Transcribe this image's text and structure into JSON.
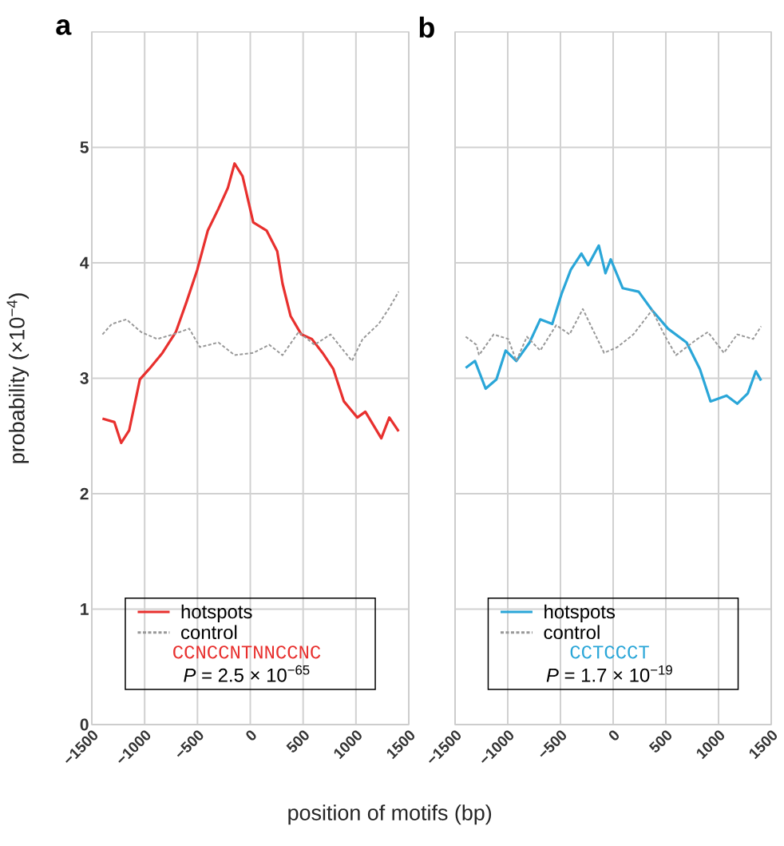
{
  "chart_data": [
    {
      "type": "line",
      "title": "a",
      "ylabel": "probability (×10$^{−4}$)",
      "xlabel": "position of motifs (bp)",
      "xlim": [
        -1500,
        1500
      ],
      "ylim": [
        0,
        6
      ],
      "xticks": [
        {
          "value": -1500,
          "label": "−1500"
        },
        {
          "value": -1000,
          "label": "−1000"
        },
        {
          "value": -500,
          "label": "−500"
        },
        0,
        500,
        1000,
        1500
      ],
      "yticks": [
        0,
        1,
        2,
        3,
        4,
        5
      ],
      "grid": true,
      "legend": "bottom",
      "annotations": [
        "CCNCCNTNNCCNC",
        "*P* = 2.5 × 10$^{−65}$"
      ],
      "series": [
        {
          "name": "hotspots",
          "color": "#e8302e",
          "line_style": "solid",
          "x": [
            -1399,
            -1286,
            -1222,
            -1146,
            -1045,
            -957,
            -831,
            -705,
            -604,
            -502,
            -402,
            -301,
            -212,
            -149,
            -73,
            28,
            154,
            255,
            305,
            381,
            483,
            583,
            684,
            786,
            886,
            1013,
            1089,
            1240,
            1316,
            1404
          ],
          "values": [
            2.65,
            2.62,
            2.44,
            2.55,
            2.99,
            3.08,
            3.22,
            3.4,
            3.66,
            3.94,
            4.28,
            4.47,
            4.65,
            4.86,
            4.75,
            4.35,
            4.28,
            4.1,
            3.82,
            3.54,
            3.38,
            3.34,
            3.22,
            3.08,
            2.8,
            2.66,
            2.71,
            2.48,
            2.66,
            2.54
          ]
        },
        {
          "name": "control",
          "color": "#999999",
          "line_style": "dashed",
          "x": [
            -1399,
            -1311,
            -1172,
            -1033,
            -881,
            -730,
            -578,
            -477,
            -301,
            -149,
            28,
            180,
            305,
            457,
            608,
            760,
            962,
            1063,
            1215,
            1316,
            1404
          ],
          "values": [
            3.38,
            3.47,
            3.51,
            3.4,
            3.34,
            3.38,
            3.43,
            3.27,
            3.31,
            3.2,
            3.22,
            3.29,
            3.2,
            3.4,
            3.29,
            3.38,
            3.15,
            3.34,
            3.47,
            3.61,
            3.75
          ]
        }
      ]
    },
    {
      "type": "line",
      "title": "b",
      "xlim": [
        -1500,
        1500
      ],
      "ylim": [
        0,
        6
      ],
      "tick_labels": "x",
      "xticks": [
        {
          "value": -1500,
          "label": "−1500"
        },
        {
          "value": -1000,
          "label": "−1000"
        },
        {
          "value": -500,
          "label": "−500"
        },
        0,
        500,
        1000,
        1500
      ],
      "yticks": [
        0,
        1,
        2,
        3,
        4,
        5
      ],
      "grid": true,
      "legend": "bottom",
      "annotations": [
        "CCTCCCT",
        "*P* = 1.7 × 10$^{−19}$"
      ],
      "series": [
        {
          "name": "hotspots",
          "color": "#2aa6d8",
          "line_style": "solid",
          "x": [
            -1399,
            -1311,
            -1210,
            -1108,
            -1020,
            -919,
            -793,
            -692,
            -578,
            -490,
            -402,
            -301,
            -237,
            -136,
            -73,
            -23,
            91,
            242,
            369,
            520,
            697,
            823,
            924,
            1076,
            1177,
            1278,
            1354,
            1404
          ],
          "values": [
            3.09,
            3.15,
            2.91,
            2.99,
            3.24,
            3.15,
            3.31,
            3.51,
            3.47,
            3.73,
            3.94,
            4.08,
            3.98,
            4.15,
            3.91,
            4.03,
            3.78,
            3.75,
            3.59,
            3.43,
            3.31,
            3.08,
            2.8,
            2.85,
            2.78,
            2.87,
            3.06,
            2.98
          ]
        },
        {
          "name": "control",
          "color": "#999999",
          "line_style": "dashed",
          "x": [
            -1399,
            -1298,
            -1273,
            -1134,
            -995,
            -919,
            -818,
            -692,
            -540,
            -414,
            -288,
            -86,
            40,
            192,
            369,
            495,
            596,
            798,
            899,
            1051,
            1177,
            1328,
            1404
          ],
          "values": [
            3.36,
            3.29,
            3.2,
            3.38,
            3.34,
            3.15,
            3.36,
            3.24,
            3.46,
            3.38,
            3.6,
            3.22,
            3.27,
            3.38,
            3.59,
            3.36,
            3.2,
            3.34,
            3.4,
            3.22,
            3.38,
            3.34,
            3.45
          ]
        }
      ]
    }
  ]
}
